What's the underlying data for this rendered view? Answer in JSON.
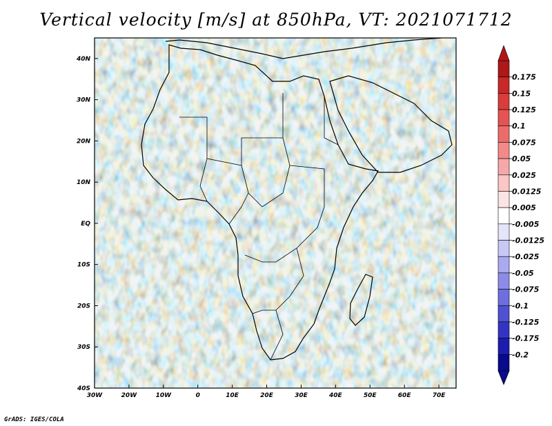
{
  "title": "Vertical velocity [m/s] at 850hPa, VT: 2021071712",
  "footer": "GrADS: IGES/COLA",
  "map": {
    "lon_range": [
      -30,
      75
    ],
    "lat_range": [
      -40,
      45
    ],
    "lon_ticks": [
      "30W",
      "20W",
      "10W",
      "0",
      "10E",
      "20E",
      "30E",
      "40E",
      "50E",
      "60E",
      "70E"
    ],
    "lat_ticks": [
      "40N",
      "30N",
      "20N",
      "10N",
      "EQ",
      "10S",
      "20S",
      "30S",
      "40S"
    ]
  },
  "colorbar": {
    "labels": [
      "0.175",
      "0.15",
      "0.125",
      "0.1",
      "0.075",
      "0.05",
      "0.025",
      "0.0125",
      "0.005",
      "-0.005",
      "-0.0125",
      "-0.025",
      "-0.05",
      "-0.075",
      "-0.1",
      "-0.125",
      "-0.175",
      "-0.2"
    ],
    "colors": [
      "#b01818",
      "#c82828",
      "#da3c3c",
      "#e45454",
      "#ec6c6c",
      "#f28a8a",
      "#f6a8a8",
      "#fac6c6",
      "#fde4e4",
      "#ffffff",
      "#e4e4fb",
      "#c8c8f6",
      "#aaaaf0",
      "#8c8ce8",
      "#6e6ede",
      "#5050d2",
      "#3434c2",
      "#1c1cae",
      "#0a0a8c"
    ]
  }
}
